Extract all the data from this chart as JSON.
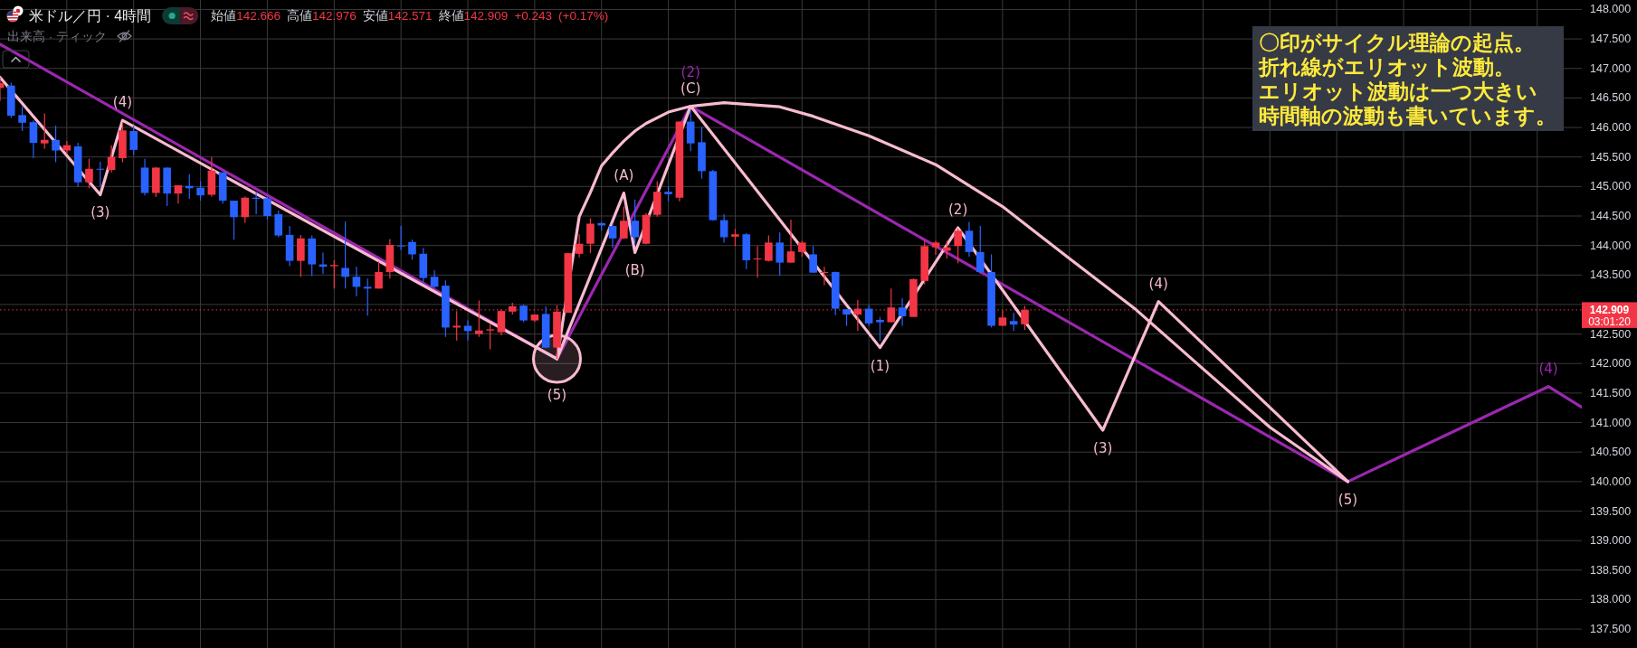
{
  "chart_data": {
    "type": "candlestick",
    "title": "米ドル／円 · 4時間",
    "subtitle": "始値142.666 高値142.976 安値142.571 終値142.909 +0.243 (+0.17%)",
    "categories": [
      null,
      null,
      null,
      null,
      null,
      null,
      null,
      null,
      null,
      null,
      null,
      null,
      null,
      null,
      null,
      null,
      null,
      null,
      null,
      null,
      null,
      null,
      null,
      null,
      null,
      null,
      null,
      null,
      null,
      null,
      null,
      null,
      null,
      null,
      null,
      null,
      null,
      null,
      null,
      null,
      null,
      null,
      null,
      null,
      null,
      null,
      null,
      null,
      null,
      null,
      null,
      null,
      null,
      null,
      null,
      null,
      null,
      null,
      null,
      null,
      null,
      null,
      null,
      null,
      null,
      null,
      null,
      null,
      null,
      null,
      null,
      null,
      null,
      null,
      null,
      null,
      null,
      null,
      null,
      null,
      null,
      null,
      null,
      null,
      null,
      null,
      null,
      null,
      null,
      null,
      null,
      null,
      null,
      null,
      null,
      null,
      null,
      null,
      null,
      null,
      null,
      null,
      null,
      null,
      null,
      null,
      null,
      null,
      null,
      null,
      null,
      null,
      null,
      null,
      null,
      null,
      null,
      null,
      null,
      null,
      null,
      null,
      null,
      null,
      null,
      null,
      null,
      null,
      null,
      null,
      null,
      null,
      null,
      null,
      null,
      null,
      null,
      null,
      null,
      null,
      null,
      null,
      null
    ],
    "ohlc": [
      [
        146.67,
        146.85,
        146.45,
        146.75
      ],
      [
        146.71,
        146.76,
        146.16,
        146.2
      ],
      [
        146.21,
        146.36,
        145.94,
        146.08
      ],
      [
        146.09,
        146.12,
        145.48,
        145.74
      ],
      [
        145.73,
        146.24,
        145.64,
        145.79
      ],
      [
        145.79,
        146.03,
        145.41,
        145.61
      ],
      [
        145.61,
        145.77,
        145.55,
        145.7
      ],
      [
        145.68,
        145.74,
        144.99,
        145.07
      ],
      [
        145.07,
        145.47,
        144.97,
        145.3
      ],
      [
        145.3,
        145.42,
        145,
        145.29
      ],
      [
        145.28,
        145.7,
        145.24,
        145.5
      ],
      [
        145.48,
        146.09,
        145.41,
        145.95
      ],
      [
        145.94,
        146.03,
        145.53,
        145.62
      ],
      [
        145.32,
        145.47,
        144.85,
        144.89
      ],
      [
        144.89,
        145.33,
        144.82,
        145.32
      ],
      [
        145.32,
        145.32,
        144.67,
        144.88
      ],
      [
        144.88,
        145.02,
        144.71,
        145.02
      ],
      [
        145.01,
        145.21,
        144.79,
        144.97
      ],
      [
        144.98,
        145.09,
        144.76,
        144.85
      ],
      [
        144.86,
        145.5,
        144.83,
        145.27
      ],
      [
        145.24,
        145.24,
        144.71,
        144.76
      ],
      [
        144.76,
        144.76,
        144.1,
        144.48
      ],
      [
        144.48,
        144.83,
        144.38,
        144.81
      ],
      [
        144.81,
        144.91,
        144.53,
        144.79
      ],
      [
        144.8,
        144.85,
        144.44,
        144.5
      ],
      [
        144.53,
        144.59,
        144.14,
        144.17
      ],
      [
        144.18,
        144.33,
        143.65,
        143.74
      ],
      [
        143.74,
        144.18,
        143.47,
        144.12
      ],
      [
        144.12,
        144.17,
        143.48,
        143.68
      ],
      [
        143.68,
        143.88,
        143.52,
        143.64
      ],
      [
        143.65,
        143.75,
        143.27,
        143.67
      ],
      [
        143.62,
        144.41,
        143.27,
        143.47
      ],
      [
        143.47,
        143.64,
        143.14,
        143.3
      ],
      [
        143.3,
        143.44,
        142.81,
        143.27
      ],
      [
        143.27,
        143.73,
        143.27,
        143.55
      ],
      [
        143.55,
        144.11,
        143.44,
        144.01
      ],
      [
        144,
        144.33,
        143.92,
        143.99
      ],
      [
        144.06,
        144.1,
        143.76,
        143.85
      ],
      [
        143.86,
        143.96,
        143.36,
        143.45
      ],
      [
        143.47,
        143.58,
        143.27,
        143.3
      ],
      [
        143.32,
        143.41,
        142.45,
        142.61
      ],
      [
        142.61,
        142.89,
        142.39,
        142.64
      ],
      [
        142.64,
        142.73,
        142.39,
        142.55
      ],
      [
        142.5,
        143.07,
        142.45,
        142.56
      ],
      [
        142.56,
        142.67,
        142.24,
        142.58
      ],
      [
        142.53,
        142.91,
        142.48,
        142.89
      ],
      [
        142.88,
        143.03,
        142.83,
        142.97
      ],
      [
        142.98,
        143,
        142.7,
        142.73
      ],
      [
        142.73,
        142.83,
        142.71,
        142.83
      ],
      [
        142.84,
        142.97,
        142.26,
        142.27
      ],
      [
        142.27,
        142.99,
        142.08,
        142.88
      ],
      [
        142.86,
        143.87,
        142.86,
        143.87
      ],
      [
        143.86,
        144.19,
        143.8,
        144.03
      ],
      [
        144.03,
        144.46,
        143.87,
        144.37
      ],
      [
        144.38,
        144.4,
        144.25,
        144.34
      ],
      [
        144.33,
        144.37,
        143.96,
        144.12
      ],
      [
        144.12,
        144.66,
        144.11,
        144.42
      ],
      [
        144.42,
        144.78,
        144.02,
        144.14
      ],
      [
        144.03,
        144.55,
        144.02,
        144.52
      ],
      [
        144.52,
        145.09,
        144.49,
        144.91
      ],
      [
        144.91,
        145,
        144.75,
        144.87
      ],
      [
        144.81,
        146.1,
        144.75,
        146.1
      ],
      [
        146.1,
        146.3,
        145.6,
        145.73
      ],
      [
        145.75,
        146.01,
        145.13,
        145.26
      ],
      [
        145.26,
        145.28,
        144.42,
        144.43
      ],
      [
        144.43,
        144.53,
        144.05,
        144.14
      ],
      [
        144.15,
        144.28,
        143.99,
        144.19
      ],
      [
        144.19,
        144.21,
        143.6,
        143.75
      ],
      [
        143.77,
        143.99,
        143.46,
        143.78
      ],
      [
        143.74,
        144.17,
        143.73,
        144.05
      ],
      [
        144.05,
        144.22,
        143.49,
        143.71
      ],
      [
        143.71,
        144.44,
        143.71,
        143.9
      ],
      [
        143.89,
        144.08,
        143.81,
        144.05
      ],
      [
        143.85,
        143.99,
        143.54,
        143.54
      ],
      [
        143.54,
        143.64,
        143.33,
        143.55
      ],
      [
        143.55,
        143.56,
        142.82,
        142.93
      ],
      [
        142.92,
        142.92,
        142.64,
        142.83
      ],
      [
        142.83,
        143.08,
        142.55,
        142.93
      ],
      [
        142.93,
        142.99,
        142.64,
        142.68
      ],
      [
        142.74,
        142.79,
        142.38,
        142.7
      ],
      [
        142.7,
        143.27,
        142.7,
        142.95
      ],
      [
        142.95,
        143.11,
        142.64,
        142.8
      ],
      [
        142.79,
        143.44,
        142.79,
        143.43
      ],
      [
        143.4,
        144.08,
        143.34,
        143.99
      ],
      [
        143.97,
        144.08,
        143.84,
        144.05
      ],
      [
        143.91,
        144.08,
        143.78,
        143.97
      ],
      [
        143.99,
        144.28,
        143.7,
        144.25
      ],
      [
        144.25,
        144.4,
        143.81,
        143.89
      ],
      [
        143.89,
        144.33,
        143.52,
        143.55
      ],
      [
        143.55,
        143.85,
        142.61,
        142.64
      ],
      [
        142.64,
        142.9,
        142.64,
        142.78
      ],
      [
        142.72,
        142.86,
        142.55,
        142.66
      ],
      [
        142.666,
        142.976,
        142.571,
        142.909
      ],
      null,
      null,
      null,
      null,
      null,
      null,
      null,
      null,
      null,
      null,
      null,
      null,
      null,
      null,
      null,
      null,
      null,
      null,
      null,
      null,
      null,
      null,
      null,
      null,
      null,
      null,
      null,
      null,
      null,
      null,
      null,
      null,
      null,
      null,
      null,
      null,
      null,
      null,
      null,
      null,
      null,
      null,
      null,
      null,
      null,
      null,
      null,
      null,
      null,
      null
    ],
    "colors": [
      "#f23645",
      "#2962ff",
      "#2962ff",
      "#2962ff",
      "#f23645",
      "#2962ff",
      "#f23645",
      "#2962ff",
      "#f23645",
      "#2962ff",
      "#f23645",
      "#f23645",
      "#2962ff",
      "#2962ff",
      "#f23645",
      "#2962ff",
      "#f23645",
      "#2962ff",
      "#2962ff",
      "#f23645",
      "#2962ff",
      "#2962ff",
      "#f23645",
      "#2962ff",
      "#2962ff",
      "#2962ff",
      "#2962ff",
      "#f23645",
      "#2962ff",
      "#2962ff",
      "#f23645",
      "#2962ff",
      "#2962ff",
      "#2962ff",
      "#f23645",
      "#f23645",
      "#2962ff",
      "#2962ff",
      "#2962ff",
      "#2962ff",
      "#2962ff",
      "#f23645",
      "#2962ff",
      "#f23645",
      "#f23645",
      "#f23645",
      "#f23645",
      "#2962ff",
      "#f23645",
      "#2962ff",
      "#f23645",
      "#f23645",
      "#f23645",
      "#f23645",
      "#2962ff",
      "#2962ff",
      "#f23645",
      "#2962ff",
      "#f23645",
      "#f23645",
      "#2962ff",
      "#f23645",
      "#2962ff",
      "#2962ff",
      "#2962ff",
      "#2962ff",
      "#f23645",
      "#2962ff",
      "#f23645",
      "#f23645",
      "#2962ff",
      "#f23645",
      "#f23645",
      "#2962ff",
      "#f23645",
      "#2962ff",
      "#2962ff",
      "#f23645",
      "#2962ff",
      "#2962ff",
      "#f23645",
      "#2962ff",
      "#f23645",
      "#f23645",
      "#f23645",
      "#f23645",
      "#f23645",
      "#2962ff",
      "#2962ff",
      "#2962ff",
      "#f23645",
      "#2962ff",
      "#f23645",
      null,
      null,
      null,
      null,
      null,
      null,
      null,
      null,
      null,
      null,
      null,
      null,
      null,
      null,
      null,
      null,
      null,
      null,
      null,
      null,
      null,
      null,
      null,
      null,
      null,
      null,
      null,
      null,
      null,
      null,
      null,
      null,
      null,
      null,
      null,
      null,
      null,
      null,
      null,
      null,
      null,
      null,
      null,
      null,
      null,
      null,
      null,
      null,
      null,
      null
    ],
    "series": [
      {
        "type": "line",
        "color": "#9c27b0",
        "values": [
          147.41,
          null,
          null,
          null,
          null,
          null,
          null,
          null,
          null,
          null,
          null,
          null,
          null,
          null,
          null,
          null,
          null,
          null,
          null,
          null,
          null,
          null,
          null,
          null,
          null,
          null,
          null,
          null,
          null,
          null,
          null,
          null,
          null,
          null,
          null,
          null,
          null,
          null,
          null,
          null,
          null,
          null,
          null,
          null,
          null,
          null,
          null,
          null,
          null,
          null,
          142.08,
          null,
          null,
          null,
          null,
          null,
          null,
          null,
          null,
          null,
          null,
          null,
          146.36,
          null,
          null,
          null,
          null,
          null,
          null,
          null,
          null,
          null,
          null,
          null,
          null,
          null,
          null,
          null,
          null,
          null,
          null,
          null,
          null,
          null,
          null,
          null,
          null,
          null,
          null,
          null,
          null,
          null,
          null,
          null,
          null,
          null,
          null,
          null,
          null,
          null,
          null,
          null,
          null,
          null,
          null,
          null,
          null,
          null,
          null,
          null,
          null,
          null,
          null,
          null,
          null,
          null,
          null,
          null,
          null,
          null,
          null,
          140,
          null,
          null,
          null,
          null,
          null,
          null,
          null,
          null,
          null,
          null,
          null,
          null,
          null,
          null,
          null,
          null,
          null,
          141.61,
          null,
          null,
          141.26
        ]
      },
      {
        "type": "line",
        "color": "#f8bbd0",
        "values": [
          146.85,
          null,
          null,
          null,
          null,
          null,
          null,
          null,
          null,
          144.86,
          null,
          146.12,
          null,
          null,
          null,
          null,
          null,
          null,
          null,
          null,
          null,
          null,
          null,
          null,
          null,
          null,
          null,
          null,
          null,
          null,
          null,
          null,
          null,
          null,
          null,
          null,
          null,
          null,
          null,
          null,
          null,
          null,
          null,
          null,
          null,
          null,
          null,
          null,
          null,
          null,
          142.08,
          null,
          null,
          null,
          null,
          null,
          144.89,
          143.88,
          null,
          null,
          null,
          null,
          146.36,
          null,
          null,
          null,
          null,
          null,
          null,
          null,
          null,
          null,
          null,
          null,
          null,
          null,
          null,
          null,
          null,
          142.27,
          null,
          null,
          null,
          null,
          null,
          null,
          144.3,
          null,
          null,
          null,
          null,
          null,
          null,
          null,
          null,
          null,
          null,
          null,
          null,
          140.87,
          null,
          null,
          null,
          null,
          143.05,
          null,
          null,
          null,
          null,
          null,
          null,
          null,
          null,
          null,
          null,
          null,
          null,
          null,
          null,
          null,
          null,
          140,
          null,
          null,
          null,
          null,
          null,
          null,
          null,
          null,
          null,
          null,
          null,
          null,
          null,
          null,
          null,
          null,
          null,
          null,
          null,
          null,
          null
        ]
      },
      {
        "type": "line",
        "color": "#f8bbd0",
        "values": [
          null,
          null,
          null,
          null,
          null,
          null,
          null,
          null,
          null,
          null,
          null,
          null,
          null,
          null,
          null,
          null,
          null,
          null,
          null,
          null,
          null,
          null,
          null,
          null,
          null,
          null,
          null,
          null,
          null,
          null,
          null,
          null,
          null,
          null,
          null,
          null,
          null,
          null,
          null,
          null,
          null,
          null,
          null,
          null,
          null,
          null,
          null,
          null,
          null,
          null,
          142.08,
          null,
          144.49,
          144.9,
          145.35,
          145.57,
          145.77,
          145.94,
          146.07,
          null,
          146.26,
          null,
          146.36,
          null,
          null,
          146.42,
          null,
          null,
          null,
          null,
          146.35,
          null,
          null,
          146.19,
          null,
          null,
          null,
          null,
          145.86,
          null,
          null,
          null,
          null,
          null,
          145.37,
          null,
          null,
          null,
          null,
          null,
          144.66,
          null,
          null,
          null,
          null,
          null,
          143.78,
          null,
          null,
          null,
          null,
          null,
          142.91,
          null,
          null,
          null,
          null,
          null,
          141.91,
          null,
          null,
          null,
          null,
          null,
          140.92,
          null,
          null,
          null,
          null,
          null,
          null,
          140,
          null,
          null,
          null,
          null,
          null,
          null,
          null,
          null,
          null,
          null,
          null,
          null,
          null,
          null,
          null,
          null,
          null,
          null,
          null,
          null,
          null
        ]
      },
      {
        "type": "scatter",
        "color": "#f8bbd0",
        "marker": "circle",
        "values": [
          null,
          null,
          null,
          null,
          null,
          null,
          null,
          null,
          null,
          null,
          null,
          null,
          null,
          null,
          null,
          null,
          null,
          null,
          null,
          null,
          null,
          null,
          null,
          null,
          null,
          null,
          null,
          null,
          null,
          null,
          null,
          null,
          null,
          null,
          null,
          null,
          null,
          null,
          null,
          null,
          null,
          null,
          null,
          null,
          null,
          null,
          null,
          null,
          null,
          null,
          142.08,
          null,
          null,
          null,
          null,
          null,
          null,
          null,
          null,
          null,
          null,
          null,
          null,
          null,
          null,
          null,
          null,
          null,
          null,
          null,
          null,
          null,
          null,
          null,
          null,
          null,
          null,
          null,
          null,
          null,
          null,
          null,
          null,
          null,
          null,
          null,
          null,
          null,
          null,
          null,
          null,
          null,
          null,
          null,
          null,
          null,
          null,
          null,
          null,
          null,
          null,
          null,
          null,
          null,
          null,
          null,
          null,
          null,
          null,
          null,
          null,
          null,
          null,
          null,
          null,
          null,
          null,
          null,
          null,
          null,
          null,
          null,
          null,
          null,
          null,
          null,
          null,
          null,
          null,
          null,
          null,
          null,
          null,
          null,
          null,
          null,
          null,
          null,
          null,
          null,
          null,
          null,
          null
        ]
      }
    ],
    "ylim": [
      137.18,
      148.16
    ],
    "yticks": [
      {
        "value": 137.5,
        "label": "137.500"
      },
      {
        "value": 138,
        "label": "138.000"
      },
      {
        "value": 138.5,
        "label": "138.500"
      },
      {
        "value": 139,
        "label": "139.000"
      },
      {
        "value": 139.5,
        "label": "139.500"
      },
      {
        "value": 140,
        "label": "140.000"
      },
      {
        "value": 140.5,
        "label": "140.500"
      },
      {
        "value": 141,
        "label": "141.000"
      },
      {
        "value": 141.5,
        "label": "141.500"
      },
      {
        "value": 142,
        "label": "142.000"
      },
      {
        "value": 142.5,
        "label": "142.500"
      },
      {
        "value": 143,
        "label": null
      },
      {
        "value": 143.5,
        "label": "143.500"
      },
      {
        "value": 144,
        "label": "144.000"
      },
      {
        "value": 144.5,
        "label": "144.500"
      },
      {
        "value": 145,
        "label": "145.000"
      },
      {
        "value": 145.5,
        "label": "145.500"
      },
      {
        "value": 146,
        "label": "146.000"
      },
      {
        "value": 146.5,
        "label": "146.500"
      },
      {
        "value": 147,
        "label": "147.000"
      },
      {
        "value": 147.5,
        "label": "147.500"
      },
      {
        "value": 148,
        "label": "148.000"
      }
    ],
    "grid": true,
    "tick_labels": "y",
    "ref_lines": [
      {
        "axis": "y",
        "value": 142.909,
        "label": "142.909",
        "color": "#f23645",
        "line_style": "dotted"
      }
    ],
    "annotations": [
      "出来高 · ティック",
      "03:01:20",
      "〇印がサイクル理論の起点。",
      "折れ線がエリオット波動。",
      "エリオット波動は一つ大きい",
      "時間軸の波動も書いています。",
      {
        "text": "(3)",
        "y": 144.86
      },
      {
        "text": "(4)",
        "y": 146.12
      },
      {
        "text": "(5)",
        "y": 142.08
      },
      {
        "text": "(A)",
        "y": 144.89
      },
      {
        "text": "(B)",
        "y": 143.88
      },
      {
        "text": "(C)",
        "y": 146.36
      },
      {
        "text": "(2)",
        "y": 146.36
      },
      {
        "text": "(1)",
        "y": 142.27
      },
      {
        "text": "(2)",
        "y": 144.3
      },
      {
        "text": "(3)",
        "y": 140.87
      },
      {
        "text": "(4)",
        "y": 143.05
      },
      {
        "text": "(5)",
        "y": 140
      },
      {
        "text": "(4)",
        "y": 141.61
      }
    ]
  }
}
